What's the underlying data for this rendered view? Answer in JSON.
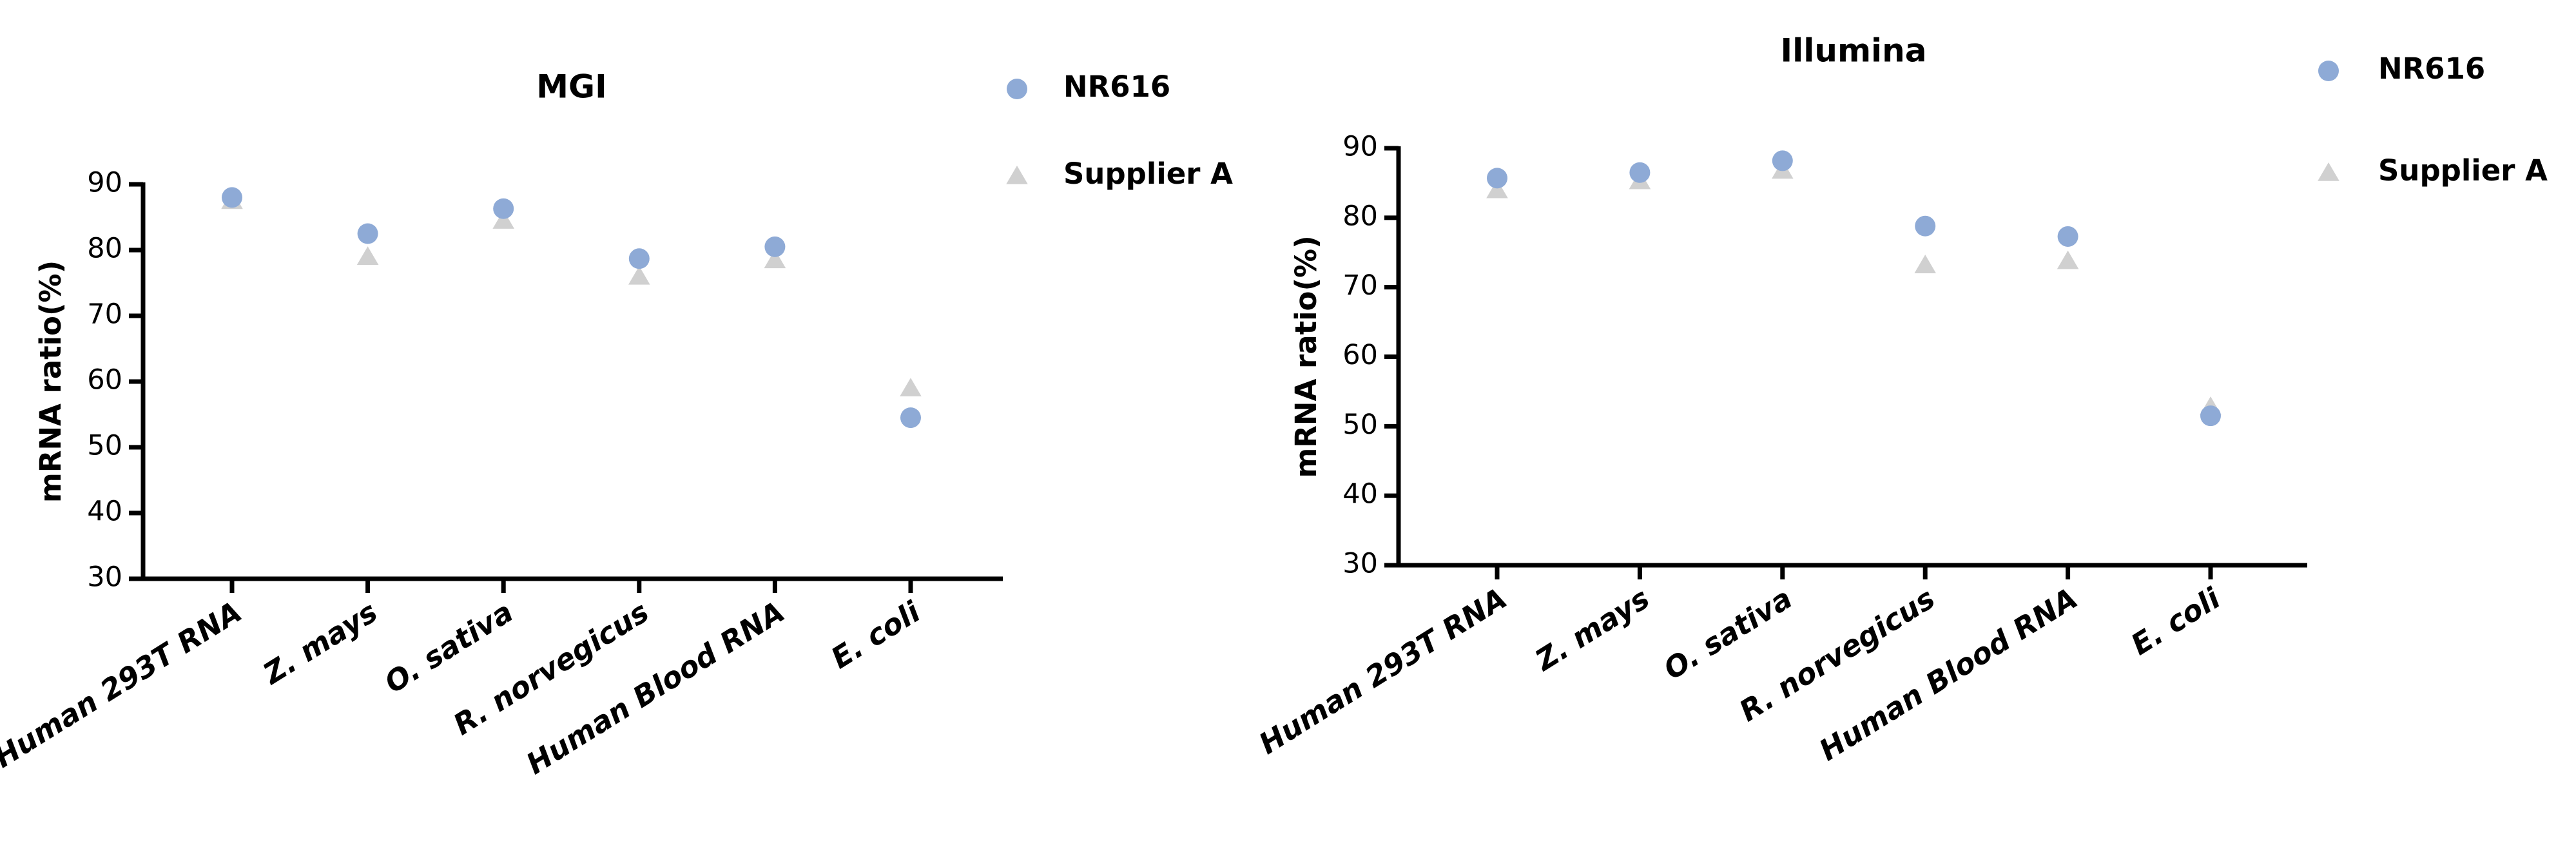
{
  "chart_data": [
    {
      "type": "scatter",
      "title": "MGI",
      "y_label": "mRNA ratio(%)",
      "categories": [
        "Human 293T RNA",
        "Z. mays",
        "O. sativa",
        "R. norvegicus",
        "Human Blood RNA",
        "E. coli"
      ],
      "series": [
        {
          "name": "NR616",
          "color": "#8eaad6",
          "marker": "circle",
          "values": [
            88,
            82.5,
            86.3,
            78.7,
            80.5,
            54.5
          ]
        },
        {
          "name": "Supplier A",
          "color": "#d0d0d0",
          "marker": "triangle",
          "values": [
            87.5,
            79,
            84.5,
            76,
            78.5,
            59
          ]
        }
      ],
      "ylim": [
        30,
        90
      ],
      "yticks": [
        30,
        40,
        50,
        60,
        70,
        80,
        90
      ]
    },
    {
      "type": "scatter",
      "title": "Illumina",
      "y_label": "mRNA ratio(%)",
      "categories": [
        "Human 293T RNA",
        "Z. mays",
        "O. sativa",
        "R. norvegicus",
        "Human Blood RNA",
        "E. coli"
      ],
      "series": [
        {
          "name": "NR616",
          "color": "#8eaad6",
          "marker": "circle",
          "values": [
            85.7,
            86.5,
            88.2,
            78.8,
            77.3,
            51.5
          ]
        },
        {
          "name": "Supplier A",
          "color": "#d0d0d0",
          "marker": "triangle",
          "values": [
            84,
            85.3,
            86.8,
            73.2,
            73.8,
            52.8
          ]
        }
      ],
      "ylim": [
        30,
        90
      ],
      "yticks": [
        30,
        40,
        50,
        60,
        70,
        80,
        90
      ]
    }
  ]
}
